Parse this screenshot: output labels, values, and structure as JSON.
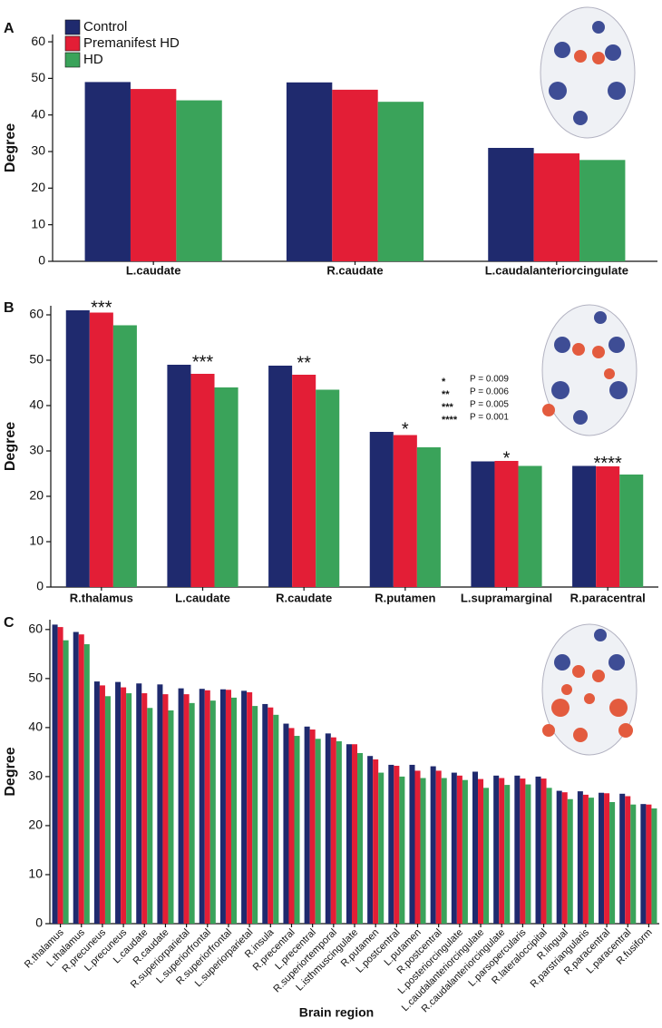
{
  "chart_data": [
    {
      "type": "bar",
      "panel": "A",
      "y_label": "Degree",
      "legend": "upper left",
      "categories": [
        "L.caudate",
        "R.caudate",
        "L.caudalanteriorcingulate"
      ],
      "series": [
        {
          "name": "Control",
          "color": "#1f2a6e",
          "values": [
            49,
            48.9,
            31
          ]
        },
        {
          "name": "Premanifest HD",
          "color": "#e31e36",
          "values": [
            47.1,
            46.9,
            29.5
          ]
        },
        {
          "name": "HD",
          "color": "#3aa35a",
          "values": [
            44,
            43.6,
            27.7
          ]
        }
      ],
      "ylim": [
        0,
        62
      ],
      "yticks": [
        0,
        10,
        20,
        30,
        40,
        50,
        60
      ]
    },
    {
      "type": "bar",
      "panel": "B",
      "y_label": "Degree",
      "categories": [
        "R.thalamus",
        "L.caudate",
        "R.caudate",
        "R.putamen",
        "L.supramarginal",
        "R.paracentral"
      ],
      "series": [
        {
          "color": "#1f2a6e",
          "values": [
            61,
            49,
            48.8,
            34.2,
            27.7,
            26.7
          ]
        },
        {
          "color": "#e31e36",
          "values": [
            60.5,
            47,
            46.8,
            33.5,
            27.8,
            26.6
          ]
        },
        {
          "color": "#3aa35a",
          "values": [
            57.7,
            44,
            43.5,
            30.8,
            26.7,
            24.8
          ]
        }
      ],
      "annotations": [
        "***",
        "***",
        "**",
        "*",
        "*",
        "****"
      ],
      "significance_legend": [
        {
          "stars": "*",
          "p": "P = 0.009"
        },
        {
          "stars": "**",
          "p": "P = 0.006"
        },
        {
          "stars": "***",
          "p": "P = 0.005"
        },
        {
          "stars": "****",
          "p": "P = 0.001"
        }
      ],
      "ylim": [
        0,
        62
      ],
      "yticks": [
        0,
        10,
        20,
        30,
        40,
        50,
        60
      ]
    },
    {
      "type": "bar",
      "panel": "C",
      "y_label": "Degree",
      "x_label": "Brain region",
      "categories": [
        "R.thalamus",
        "L.thalamus",
        "R.precuneus",
        "L.precuneus",
        "L.caudate",
        "R.caudate",
        "R.superiorparietal",
        "L.superiorfrontal",
        "R.superiorfrontal",
        "L.superiorparietal",
        "R.insula",
        "R.precentral",
        "L.precentral",
        "R.superiortemporal",
        "L.isthmuscingulate",
        "R.putamen",
        "L.postcentral",
        "L.putamen",
        "R.postcentral",
        "L.posteriorcingulate",
        "L.caudalanteriorcingulate",
        "R.caudalanteriorcingulate",
        "L.parsopercularis",
        "R.lateraloccipital",
        "R.lingual",
        "R.parstriangularis",
        "R.paracentral",
        "L.paracentral",
        "R.fusiform"
      ],
      "series": [
        {
          "color": "#1f2a6e",
          "values": [
            61,
            59.5,
            49.4,
            49.3,
            49,
            48.8,
            48,
            47.9,
            47.8,
            47.5,
            44.8,
            40.8,
            40.2,
            38.8,
            36.6,
            34.2,
            32.4,
            32.4,
            32.1,
            30.8,
            31,
            30.2,
            30.2,
            30,
            27.1,
            27,
            26.7,
            26.5,
            24.4
          ]
        },
        {
          "color": "#e31e36",
          "values": [
            60.5,
            59,
            48.6,
            48.2,
            47,
            46.8,
            46.8,
            47.6,
            47.7,
            47.2,
            44.1,
            39.9,
            39.6,
            38,
            36.6,
            33.5,
            32.2,
            31.2,
            31.2,
            30.2,
            29.5,
            29.7,
            29.6,
            29.6,
            26.8,
            26.3,
            26.6,
            26,
            24.3
          ]
        },
        {
          "color": "#3aa35a",
          "values": [
            57.8,
            57,
            46.4,
            47,
            44,
            43.5,
            45,
            45.5,
            46.1,
            44.4,
            42.6,
            38.3,
            37.7,
            37.2,
            34.8,
            30.8,
            30,
            29.7,
            29.7,
            29.3,
            27.7,
            28.3,
            28.4,
            27.7,
            25.4,
            25.7,
            24.8,
            24.3,
            23.5
          ]
        }
      ],
      "ylim": [
        0,
        62
      ],
      "yticks": [
        0,
        10,
        20,
        30,
        40,
        50,
        60
      ]
    }
  ]
}
